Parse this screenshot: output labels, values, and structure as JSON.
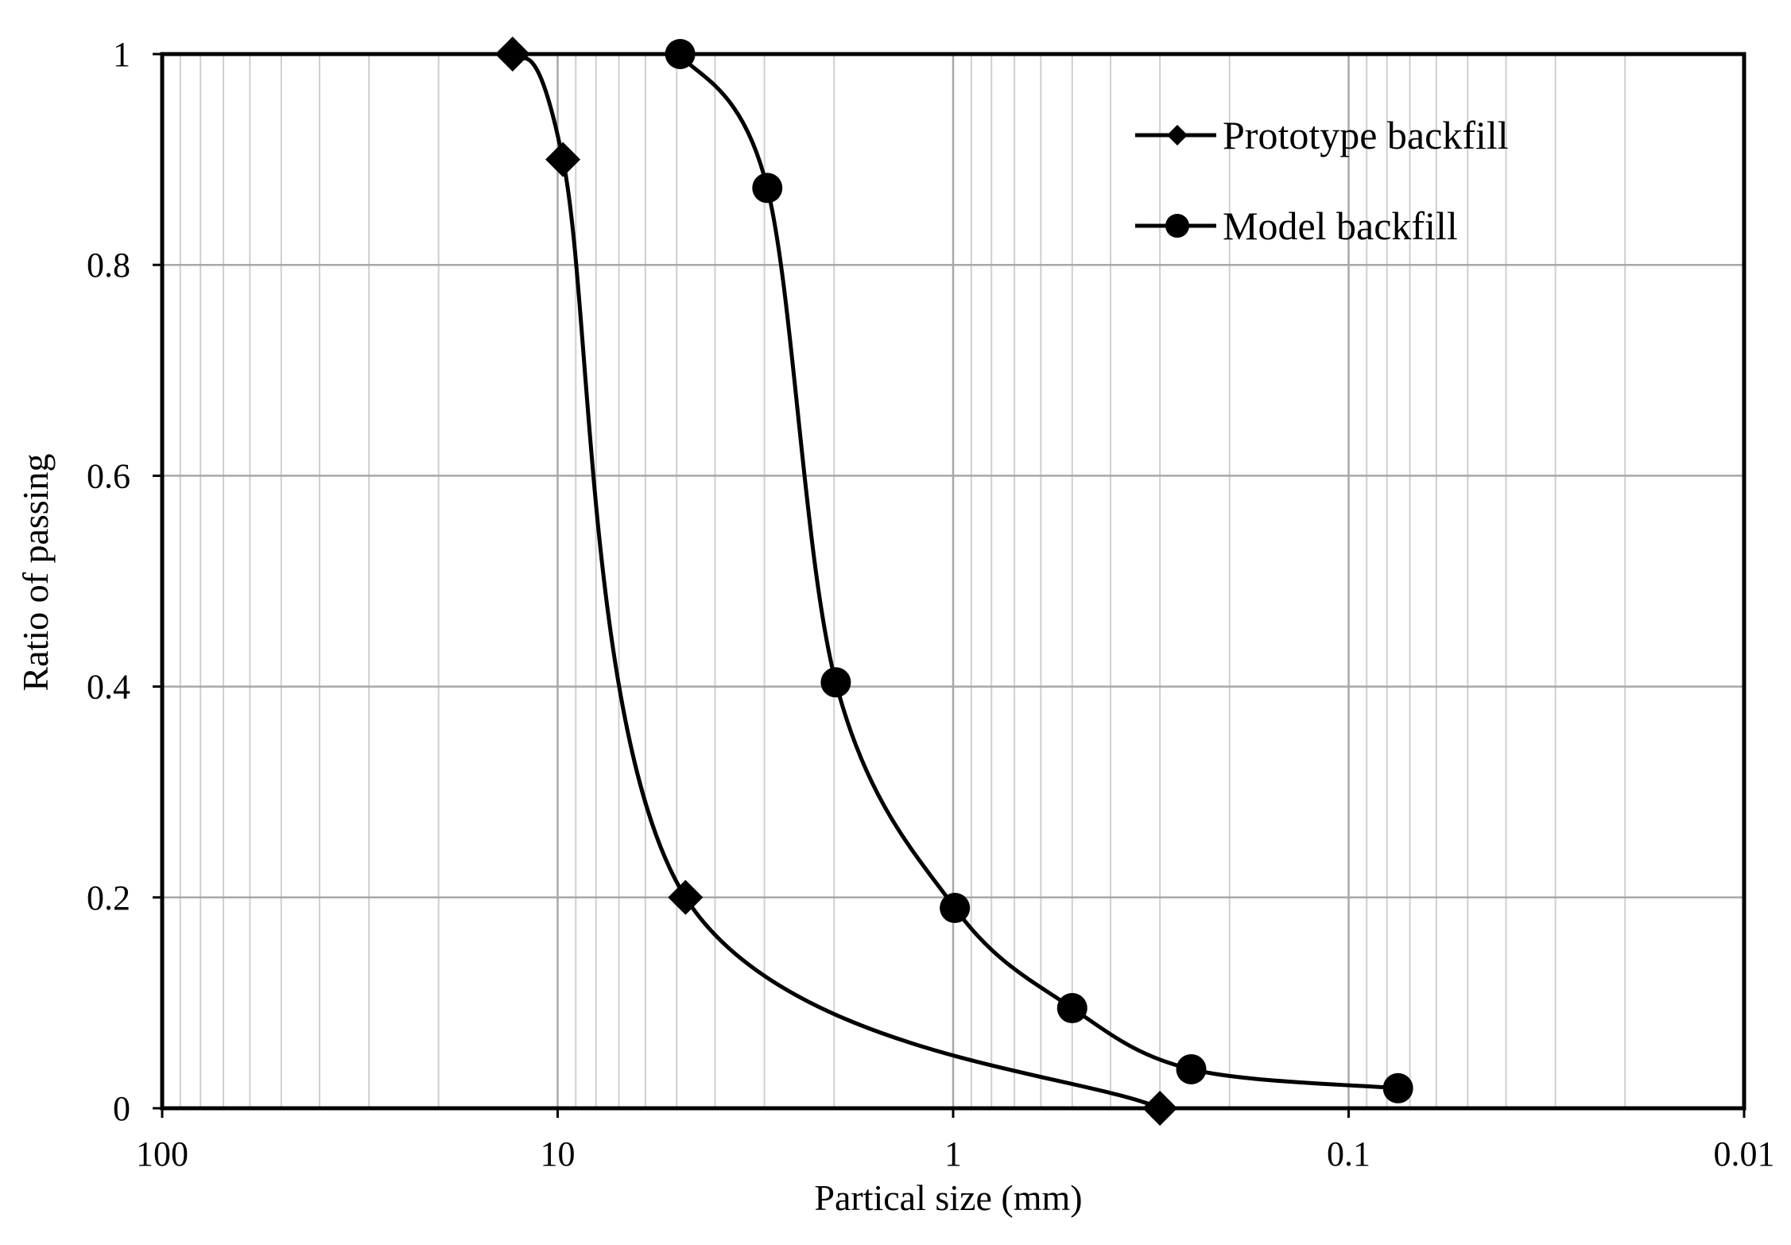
{
  "chart_data": {
    "type": "scatter",
    "xlabel": "Partical size (mm)",
    "ylabel": "Ratio of passing",
    "xscale": "log",
    "xaxis_reversed": true,
    "xlim": [
      100,
      0.01
    ],
    "ylim": [
      0,
      1
    ],
    "x_ticks": [
      100,
      10,
      1,
      0.1,
      0.01
    ],
    "x_tick_labels": [
      "100",
      "10",
      "1",
      "0.1",
      "0.01"
    ],
    "y_ticks": [
      0,
      0.2,
      0.4,
      0.6,
      0.8,
      1
    ],
    "y_tick_labels": [
      "0",
      "0.2",
      "0.4",
      "0.6",
      "0.8",
      "1"
    ],
    "grid": true,
    "smooth_lines": true,
    "legend_position": "top-right",
    "series": [
      {
        "name": "Prototype backfill",
        "marker": "diamond",
        "color": "#000000",
        "points": [
          {
            "x": 13,
            "y": 1.0
          },
          {
            "x": 9.7,
            "y": 0.9
          },
          {
            "x": 4.75,
            "y": 0.2
          },
          {
            "x": 0.3,
            "y": 0.0
          }
        ]
      },
      {
        "name": "Model backfill",
        "marker": "circle",
        "color": "#000000",
        "points": [
          {
            "x": 4.9,
            "y": 1.0
          },
          {
            "x": 2.95,
            "y": 0.873
          },
          {
            "x": 1.98,
            "y": 0.404
          },
          {
            "x": 0.99,
            "y": 0.19
          },
          {
            "x": 0.5,
            "y": 0.095
          },
          {
            "x": 0.25,
            "y": 0.037
          },
          {
            "x": 0.075,
            "y": 0.019
          }
        ]
      }
    ]
  }
}
